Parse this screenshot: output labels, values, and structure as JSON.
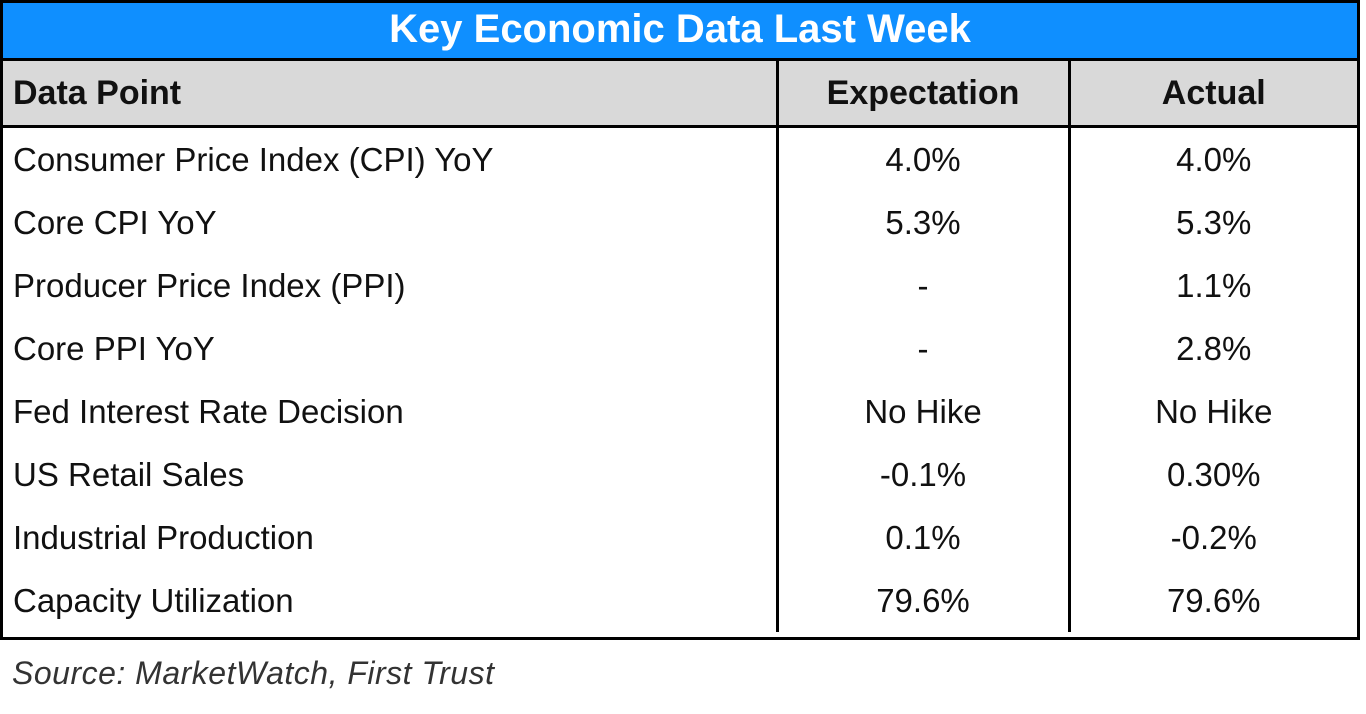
{
  "title": "Key Economic Data Last Week",
  "columns": [
    "Data Point",
    "Expectation",
    "Actual"
  ],
  "rows": [
    {
      "data_point": "Consumer Price Index (CPI) YoY",
      "expectation": "4.0%",
      "actual": "4.0%"
    },
    {
      "data_point": "Core CPI YoY",
      "expectation": "5.3%",
      "actual": "5.3%"
    },
    {
      "data_point": "Producer Price Index (PPI)",
      "expectation": "-",
      "actual": "1.1%"
    },
    {
      "data_point": "Core PPI YoY",
      "expectation": "-",
      "actual": "2.8%"
    },
    {
      "data_point": "Fed Interest Rate Decision",
      "expectation": "No Hike",
      "actual": "No Hike"
    },
    {
      "data_point": "US Retail Sales",
      "expectation": "-0.1%",
      "actual": "0.30%"
    },
    {
      "data_point": "Industrial Production",
      "expectation": "0.1%",
      "actual": "-0.2%"
    },
    {
      "data_point": "Capacity Utilization",
      "expectation": "79.6%",
      "actual": "79.6%"
    }
  ],
  "source": "Source: MarketWatch, First Trust",
  "colors": {
    "title_background": "#0f8fff",
    "header_background": "#d9d9d9",
    "border": "#000000"
  }
}
